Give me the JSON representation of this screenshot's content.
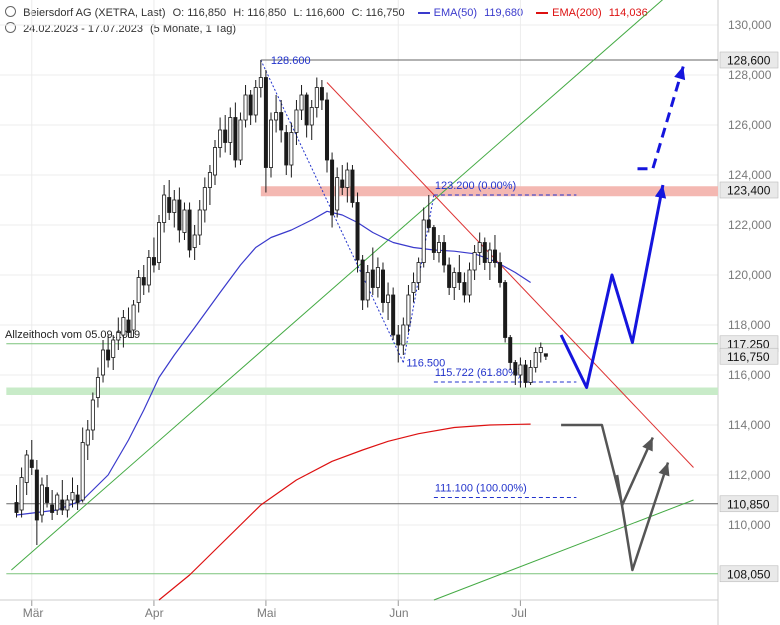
{
  "header": {
    "title": "Beiersdorf AG (XETRA, Last)",
    "ohlc": [
      "O: 116,850",
      "H: 116,850",
      "L: 116,600",
      "C: 116,750"
    ],
    "ema50_label": "EMA(50)",
    "ema50_value": "119,680",
    "ema200_label": "EMA(200)",
    "ema200_value": "114,036",
    "date_range": "24.02.2023 - 17.07.2023",
    "period": "(5 Monate, 1 Tag)"
  },
  "colors": {
    "candle": "#1a1a1a",
    "ema50": "#3a3acc",
    "ema200": "#dd1111",
    "trend_green": "#44aa44",
    "trend_red": "#dd3333",
    "fib": "#2233cc",
    "zone_red": "#f4b8b2",
    "zone_green": "#c8ebc8",
    "scenario_up": "#1515dd",
    "scenario_down": "#555555",
    "level_box": "#e9e9e9"
  },
  "chart_data": {
    "type": "candlestick",
    "ylim": [
      107,
      131
    ],
    "y_ticks": [
      "130,000",
      "128,000",
      "126,000",
      "124,000",
      "122,000",
      "120,000",
      "118,000",
      "116,000",
      "114,000",
      "112,000",
      "110,000"
    ],
    "x_labels": [
      {
        "label": "Mär",
        "index": 3
      },
      {
        "label": "Apr",
        "index": 27
      },
      {
        "label": "Mai",
        "index": 49
      },
      {
        "label": "Jun",
        "index": 75
      },
      {
        "label": "Jul",
        "index": 99
      }
    ],
    "candles": [
      [
        110.9,
        111.6,
        110.3,
        110.5
      ],
      [
        110.6,
        112.3,
        110.3,
        111.9
      ],
      [
        111.7,
        113.0,
        111.2,
        112.8
      ],
      [
        112.6,
        113.4,
        112.0,
        112.3
      ],
      [
        112.2,
        112.6,
        109.2,
        110.2
      ],
      [
        110.4,
        111.9,
        110.1,
        111.6
      ],
      [
        111.5,
        112.0,
        110.7,
        110.9
      ],
      [
        110.8,
        111.4,
        110.2,
        110.5
      ],
      [
        110.6,
        111.3,
        110.4,
        111.2
      ],
      [
        111.0,
        111.8,
        110.4,
        110.6
      ],
      [
        110.6,
        111.2,
        110.3,
        111.0
      ],
      [
        111.0,
        111.9,
        110.7,
        111.3
      ],
      [
        111.2,
        111.6,
        110.6,
        110.9
      ],
      [
        111.0,
        113.9,
        110.9,
        113.3
      ],
      [
        113.2,
        114.2,
        112.6,
        113.8
      ],
      [
        113.8,
        115.3,
        113.4,
        115.0
      ],
      [
        115.1,
        116.3,
        114.7,
        115.9
      ],
      [
        116.0,
        117.4,
        115.7,
        117.0
      ],
      [
        117.0,
        117.6,
        116.3,
        116.6
      ],
      [
        116.7,
        117.6,
        116.2,
        117.4
      ],
      [
        117.4,
        118.3,
        117.0,
        117.7
      ],
      [
        117.6,
        118.6,
        117.1,
        118.3
      ],
      [
        118.2,
        118.7,
        117.5,
        117.7
      ],
      [
        117.8,
        119.0,
        117.5,
        118.8
      ],
      [
        118.9,
        120.2,
        118.5,
        119.9
      ],
      [
        119.9,
        120.4,
        119.2,
        119.6
      ],
      [
        119.6,
        121.0,
        119.3,
        120.7
      ],
      [
        120.7,
        121.5,
        120.1,
        120.4
      ],
      [
        120.5,
        122.4,
        120.2,
        122.1
      ],
      [
        122.1,
        123.6,
        121.7,
        123.2
      ],
      [
        123.1,
        123.8,
        122.2,
        122.5
      ],
      [
        122.5,
        123.4,
        121.9,
        123.0
      ],
      [
        123.0,
        123.5,
        121.3,
        121.8
      ],
      [
        121.7,
        122.9,
        121.4,
        122.6
      ],
      [
        122.6,
        122.9,
        120.7,
        121.0
      ],
      [
        121.1,
        122.0,
        120.6,
        121.6
      ],
      [
        121.6,
        123.0,
        121.2,
        122.6
      ],
      [
        122.6,
        123.9,
        122.1,
        123.5
      ],
      [
        123.5,
        124.4,
        122.8,
        124.1
      ],
      [
        124.0,
        125.4,
        123.6,
        125.1
      ],
      [
        125.1,
        126.3,
        124.7,
        125.8
      ],
      [
        125.8,
        126.4,
        124.9,
        125.3
      ],
      [
        125.3,
        126.7,
        124.8,
        126.3
      ],
      [
        126.3,
        126.9,
        124.3,
        124.6
      ],
      [
        124.6,
        126.5,
        124.4,
        126.2
      ],
      [
        126.2,
        127.6,
        125.9,
        127.2
      ],
      [
        127.2,
        127.4,
        126.0,
        126.4
      ],
      [
        126.4,
        127.8,
        126.1,
        127.5
      ],
      [
        127.5,
        128.6,
        127.1,
        127.9
      ],
      [
        127.9,
        128.2,
        123.3,
        124.3
      ],
      [
        124.3,
        126.5,
        123.9,
        126.2
      ],
      [
        126.2,
        127.2,
        125.7,
        126.5
      ],
      [
        126.5,
        127.0,
        125.3,
        125.8
      ],
      [
        125.7,
        126.0,
        124.0,
        124.4
      ],
      [
        124.4,
        126.1,
        123.9,
        125.7
      ],
      [
        125.7,
        127.0,
        125.2,
        126.6
      ],
      [
        126.6,
        127.6,
        126.2,
        127.2
      ],
      [
        127.2,
        127.3,
        125.5,
        126.0
      ],
      [
        126.0,
        127.0,
        125.4,
        126.7
      ],
      [
        126.7,
        127.9,
        126.3,
        127.5
      ],
      [
        127.5,
        127.8,
        126.6,
        127.0
      ],
      [
        127.0,
        127.3,
        124.1,
        124.6
      ],
      [
        124.6,
        124.9,
        121.9,
        122.4
      ],
      [
        122.6,
        124.3,
        122.3,
        123.9
      ],
      [
        123.8,
        124.4,
        123.2,
        123.5
      ],
      [
        123.5,
        124.5,
        122.9,
        124.2
      ],
      [
        124.2,
        124.4,
        122.7,
        122.9
      ],
      [
        122.9,
        123.3,
        120.1,
        120.6
      ],
      [
        120.6,
        120.8,
        118.6,
        119.0
      ],
      [
        119.0,
        120.4,
        118.7,
        120.1
      ],
      [
        120.2,
        121.1,
        119.2,
        119.5
      ],
      [
        119.5,
        120.7,
        119.1,
        120.3
      ],
      [
        120.2,
        120.5,
        118.5,
        118.9
      ],
      [
        118.9,
        119.7,
        118.2,
        119.2
      ],
      [
        119.2,
        119.5,
        117.4,
        117.6
      ],
      [
        117.6,
        118.0,
        116.5,
        117.2
      ],
      [
        117.2,
        118.3,
        116.8,
        118.0
      ],
      [
        118.0,
        119.6,
        117.7,
        119.2
      ],
      [
        119.3,
        120.1,
        118.9,
        119.7
      ],
      [
        119.7,
        120.7,
        119.4,
        120.5
      ],
      [
        120.5,
        122.7,
        120.3,
        122.2
      ],
      [
        122.2,
        123.2,
        121.7,
        121.9
      ],
      [
        121.9,
        122.0,
        120.6,
        120.9
      ],
      [
        120.9,
        121.6,
        120.5,
        121.3
      ],
      [
        121.3,
        121.6,
        120.1,
        120.4
      ],
      [
        120.4,
        120.7,
        119.2,
        119.5
      ],
      [
        119.5,
        120.3,
        119.0,
        120.1
      ],
      [
        120.1,
        120.8,
        119.4,
        119.7
      ],
      [
        119.7,
        120.1,
        118.9,
        119.2
      ],
      [
        119.2,
        120.5,
        118.9,
        120.2
      ],
      [
        120.2,
        121.2,
        119.8,
        120.9
      ],
      [
        120.9,
        121.7,
        120.4,
        121.3
      ],
      [
        121.3,
        121.5,
        120.2,
        120.5
      ],
      [
        120.5,
        121.3,
        119.8,
        121.0
      ],
      [
        121.0,
        121.6,
        120.3,
        120.5
      ],
      [
        120.5,
        120.9,
        119.5,
        119.7
      ],
      [
        119.7,
        119.8,
        117.3,
        117.5
      ],
      [
        117.5,
        117.6,
        116.2,
        116.5
      ],
      [
        116.5,
        116.6,
        115.6,
        116.0
      ],
      [
        116.0,
        116.7,
        115.5,
        116.4
      ],
      [
        116.4,
        116.6,
        115.5,
        115.7
      ],
      [
        115.7,
        116.6,
        115.6,
        116.3
      ],
      [
        116.3,
        117.1,
        116.1,
        116.9
      ],
      [
        116.9,
        117.3,
        116.5,
        117.1
      ],
      [
        116.85,
        116.85,
        116.6,
        116.75
      ]
    ],
    "ema50": [
      [
        0,
        110.4
      ],
      [
        8,
        110.6
      ],
      [
        13,
        111.0
      ],
      [
        18,
        112.0
      ],
      [
        22,
        113.4
      ],
      [
        25,
        114.6
      ],
      [
        28,
        115.9
      ],
      [
        31,
        116.8
      ],
      [
        35,
        117.9
      ],
      [
        40,
        119.3
      ],
      [
        44,
        120.4
      ],
      [
        47,
        121.1
      ],
      [
        50,
        121.5
      ],
      [
        54,
        121.8
      ],
      [
        58,
        122.2
      ],
      [
        61,
        122.55
      ],
      [
        64,
        122.4
      ],
      [
        67,
        122.1
      ],
      [
        70,
        121.7
      ],
      [
        74,
        121.3
      ],
      [
        78,
        121.1
      ],
      [
        82,
        121.0
      ],
      [
        86,
        120.95
      ],
      [
        90,
        120.85
      ],
      [
        94,
        120.55
      ],
      [
        98,
        120.1
      ],
      [
        101,
        119.7
      ]
    ],
    "ema200": [
      [
        28,
        107.0
      ],
      [
        34,
        108.0
      ],
      [
        41,
        109.4
      ],
      [
        48,
        110.8
      ],
      [
        55,
        111.8
      ],
      [
        62,
        112.55
      ],
      [
        68,
        113.0
      ],
      [
        73,
        113.35
      ],
      [
        79,
        113.65
      ],
      [
        86,
        113.9
      ],
      [
        93,
        114.0
      ],
      [
        99,
        114.03
      ],
      [
        101,
        114.036
      ]
    ],
    "trendlines": {
      "green_support": [
        [
          -1,
          108.2
        ],
        [
          128,
          131.2
        ]
      ],
      "red_resistance": [
        [
          61,
          127.7
        ],
        [
          133,
          112.3
        ]
      ],
      "green_lower": [
        [
          82,
          107.0
        ],
        [
          133,
          111.0
        ]
      ]
    },
    "zones": [
      {
        "name": "resistance",
        "lo": 123.15,
        "hi": 123.55,
        "from": 48
      },
      {
        "name": "support",
        "lo": 115.2,
        "hi": 115.5,
        "from": -2
      }
    ],
    "levels": [
      {
        "value": 128.6,
        "label": "128,600",
        "from": 48
      },
      {
        "value": 117.25,
        "label": "117,250",
        "from": -2
      },
      {
        "value": 110.85,
        "label": "110,850",
        "from": -2
      },
      {
        "value": 108.05,
        "label": "108,050",
        "from": -2
      }
    ],
    "level_note": "Allzeithoch vom 05.09.2019",
    "last_price": "116,750",
    "fib": {
      "high": {
        "index": 48,
        "value": 128.6,
        "label": "128.600"
      },
      "low": {
        "index": 76,
        "value": 116.5,
        "label": "116.500"
      },
      "retrace": {
        "index": 82,
        "value": 123.2
      },
      "lines": [
        {
          "value": 123.2,
          "label": "123.200 (0.00%)",
          "from": 82,
          "to": 110
        },
        {
          "value": 115.722,
          "label": "115.722 (61.80%)",
          "from": 82,
          "to": 110
        },
        {
          "value": 111.1,
          "label": "111.100 (100.00%)",
          "from": 82,
          "to": 110
        }
      ]
    },
    "scenarios": {
      "up": [
        [
          107,
          117.6
        ],
        [
          112,
          115.5
        ],
        [
          117,
          120.0
        ],
        [
          121,
          117.3
        ],
        [
          127,
          123.6
        ]
      ],
      "up_dashed": [
        [
          122,
          124.25
        ],
        [
          125,
          124.25
        ],
        [
          131,
          128.35
        ]
      ],
      "down_a": [
        [
          107,
          114.0
        ],
        [
          115,
          114.0
        ],
        [
          119,
          110.8
        ],
        [
          125,
          113.5
        ]
      ],
      "down_b": [
        [
          118,
          112.0
        ],
        [
          121,
          108.2
        ],
        [
          128,
          112.5
        ]
      ]
    }
  }
}
